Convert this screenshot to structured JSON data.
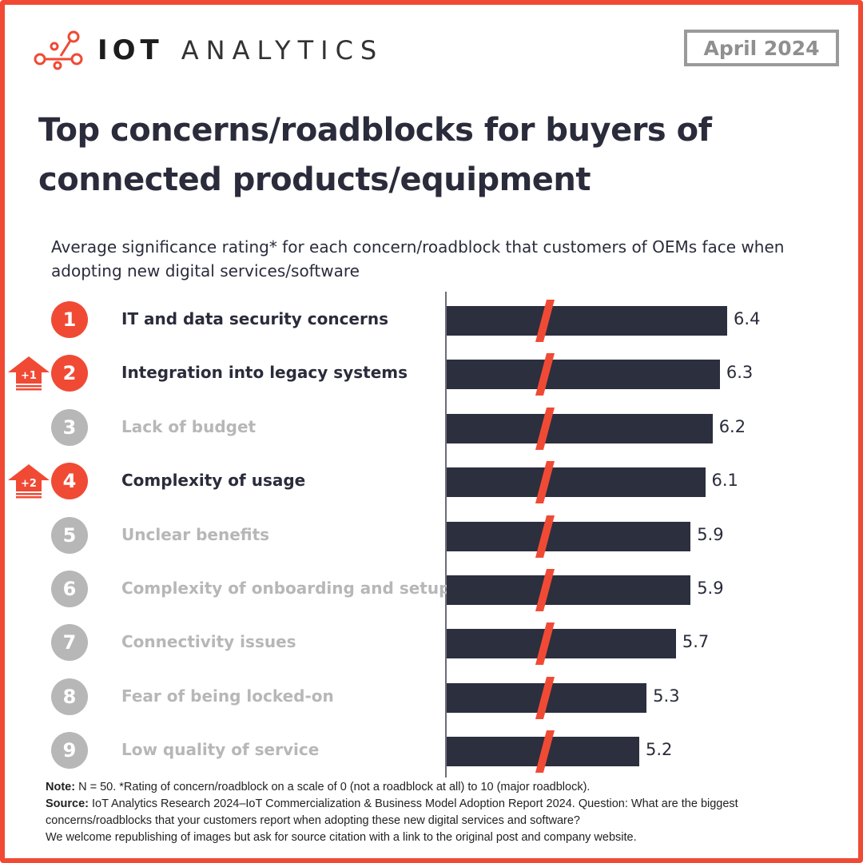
{
  "brand": {
    "logo_bold": "IOT",
    "logo_light": "ANALYTICS",
    "accent_color": "#f04a35",
    "dark_color": "#2c2f3e",
    "muted_color": "#b7b7b7"
  },
  "date_badge": "April 2024",
  "title": "Top concerns/roadblocks for buyers of connected products/equipment",
  "subtitle": "Average significance rating* for each concern/roadblock that customers of OEMs face when adopting new digital services/software",
  "chart_data": {
    "type": "bar",
    "orientation": "horizontal",
    "title": "Top concerns/roadblocks for buyers of connected products/equipment",
    "subtitle": "Average significance rating* for each concern/roadblock that customers of OEMs face when adopting new digital services/software",
    "xlabel": "",
    "ylabel": "",
    "axis_break": true,
    "xlim": [
      0,
      10
    ],
    "categories": [
      "IT and data security concerns",
      "Integration into legacy systems",
      "Lack of budget",
      "Complexity of usage",
      "Unclear benefits",
      "Complexity of onboarding and setup",
      "Connectivity issues",
      "Fear of being locked-on",
      "Low quality of service"
    ],
    "values": [
      6.4,
      6.3,
      6.2,
      6.1,
      5.9,
      5.9,
      5.7,
      5.3,
      5.2
    ],
    "value_labels": [
      "6.4",
      "6.3",
      "6.2",
      "6.1",
      "5.9",
      "5.9",
      "5.7",
      "5.3",
      "5.2"
    ],
    "ranks": [
      "1",
      "2",
      "3",
      "4",
      "5",
      "6",
      "7",
      "8",
      "9"
    ],
    "highlighted": [
      true,
      true,
      false,
      true,
      false,
      false,
      false,
      false,
      false
    ],
    "rank_changes": [
      "",
      "+1",
      "",
      "+2",
      "",
      "",
      "",
      "",
      ""
    ]
  },
  "notes": {
    "note_label": "Note:",
    "note_text": " N = 50. *Rating of concern/roadblock on a scale of 0 (not a roadblock at all) to 10 (major roadblock).",
    "source_label": "Source:",
    "source_text": " IoT Analytics Research 2024–IoT Commercialization & Business Model Adoption Report 2024. Question: What are the biggest concerns/roadblocks that your customers report when adopting these new digital services and software?",
    "disclaimer": "We welcome republishing of images but ask for source citation with a link to the original post and company website."
  }
}
